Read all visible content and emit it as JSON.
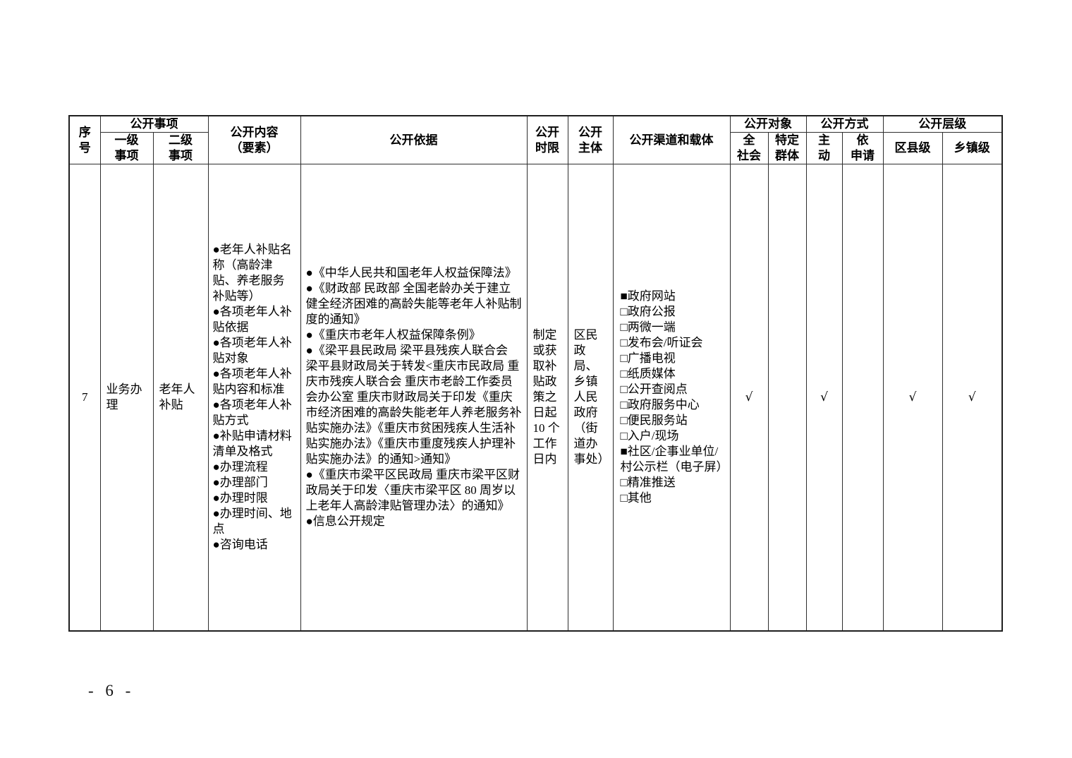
{
  "page": {
    "footer_page_number": "- 6 -"
  },
  "table": {
    "header": {
      "xu_hao": "序\n号",
      "gongkai_shixiang": "公开事项",
      "yiji_shixiang": "一级\n事项",
      "erji_shixiang": "二级\n事项",
      "gongkai_neirong": "公开内容\n（要素）",
      "gongkai_yiju": "公开依据",
      "gongkai_shixian": "公开\n时限",
      "gongkai_zhuti": "公开\n主体",
      "gongkai_qudao": "公开渠道和载体",
      "gongkai_duixiang": "公开对象",
      "quan_shehui": "全\n社会",
      "teding_qunti": "特定\n群体",
      "gongkai_fangshi": "公开方式",
      "zhudong": "主\n动",
      "yi_shenqing": "依\n申请",
      "gongkai_cengji": "公开层级",
      "quxian_ji": "区县级",
      "xiangzhen_ji": "乡镇级"
    },
    "row": {
      "xu_hao": "7",
      "yiji_shixiang": "业务办理",
      "erji_shixiang": "老年人补贴",
      "neirong_items": [
        "●老年人补贴名称（高龄津贴、养老服务补贴等）",
        "●各项老年人补贴依据",
        "●各项老年人补贴对象",
        "●各项老年人补贴内容和标准",
        "●各项老年人补贴方式",
        "●补贴申请材料清单及格式",
        "●办理流程",
        "●办理部门",
        "●办理时限",
        "●办理时间、地点",
        "●咨询电话"
      ],
      "yiju_items": [
        "●《中华人民共和国老年人权益保障法》",
        "●《财政部 民政部 全国老龄办关于建立健全经济困难的高龄失能等老年人补贴制度的通知》",
        "●《重庆市老年人权益保障条例》",
        "●《梁平县民政局 梁平县残疾人联合会 梁平县财政局关于转发<重庆市民政局 重庆市残疾人联合会 重庆市老龄工作委员会办公室 重庆市财政局关于印发《重庆市经济困难的高龄失能老年人养老服务补贴实施办法》《重庆市贫困残疾人生活补贴实施办法》《重庆市重度残疾人护理补贴实施办法》的通知>通知》",
        "●《重庆市梁平区民政局 重庆市梁平区财政局关于印发〈重庆市梁平区 80 周岁以上老年人高龄津贴管理办法〉的通知》",
        "●信息公开规定"
      ],
      "shixian": "制定或获取补贴政策之日起 10 个工作日内",
      "zhuti": "区民政局、乡镇人民政府（街道办事处）",
      "qudao_items": [
        "■政府网站",
        "□政府公报",
        "□两微一端",
        "□发布会/听证会",
        "□广播电视",
        "□纸质媒体",
        "□公开查阅点",
        "□政府服务中心",
        "□便民服务站",
        "□入户/现场",
        "■社区/企事业单位/村公示栏（电子屏）",
        "□精准推送",
        "□其他"
      ],
      "duixiang_quanshehui": "√",
      "duixiang_teding": "",
      "fangshi_zhudong": "√",
      "fangshi_yishenqing": "",
      "cengji_quxian": "√",
      "cengji_xiangzhen": "√"
    }
  }
}
